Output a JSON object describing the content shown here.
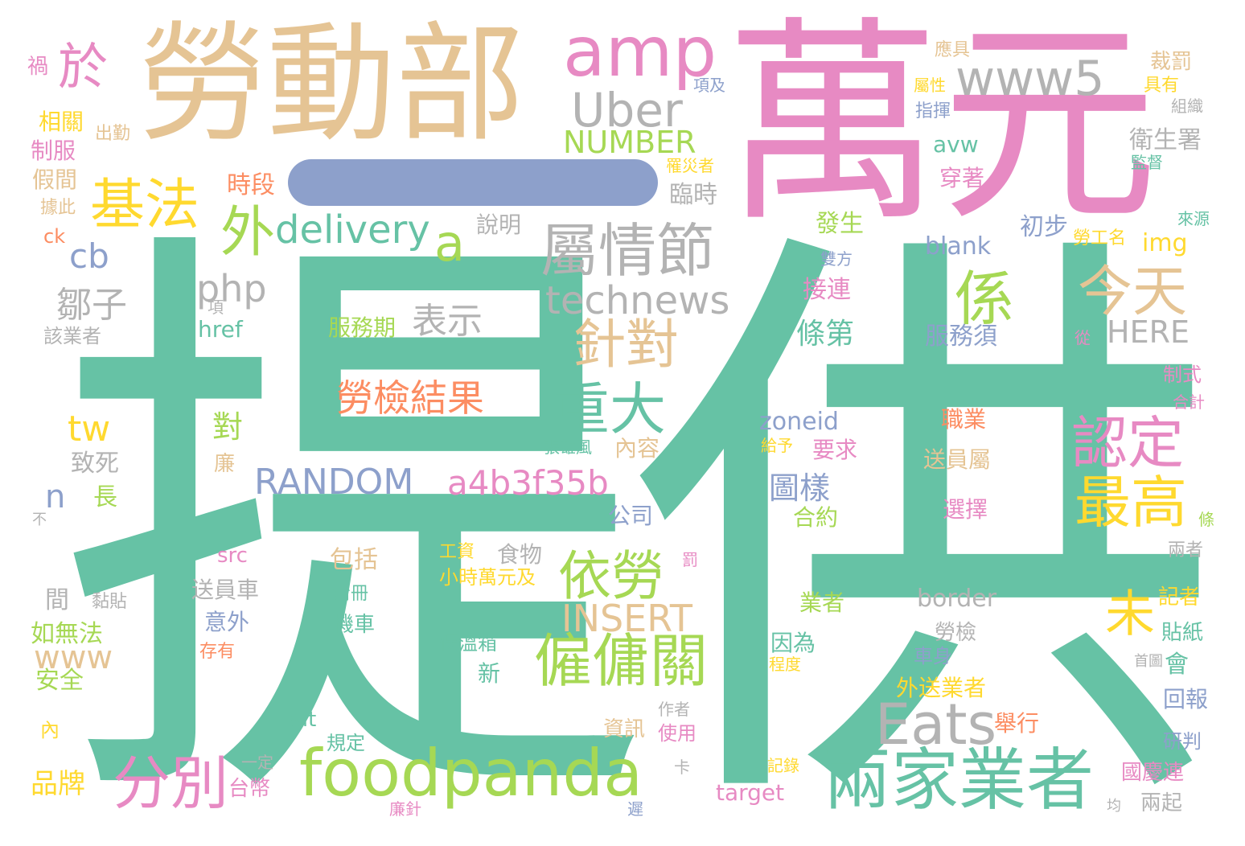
{
  "colors": {
    "green": "#66c2a5",
    "orange": "#fc8d62",
    "blue": "#8da0cb",
    "pink": "#e78ac3",
    "lime": "#a6d854",
    "yellow": "#ffd92f",
    "tan": "#e5c494",
    "gray": "#b3b3b3"
  },
  "words": [
    {
      "text": "提供",
      "color": "green"
    },
    {
      "text": "萬元",
      "color": "pink"
    },
    {
      "text": "勞動部",
      "color": "tan"
    },
    {
      "text": "一",
      "color": "blue"
    },
    {
      "text": "於",
      "color": "pink"
    },
    {
      "text": "amp",
      "color": "pink"
    },
    {
      "text": "www5",
      "color": "gray"
    },
    {
      "text": "Uber",
      "color": "gray"
    },
    {
      "text": "基法",
      "color": "yellow"
    },
    {
      "text": "NUMBER",
      "color": "lime"
    },
    {
      "text": "外",
      "color": "lime"
    },
    {
      "text": "delivery",
      "color": "green"
    },
    {
      "text": "a",
      "color": "lime"
    },
    {
      "text": "屬情節",
      "color": "gray"
    },
    {
      "text": "係",
      "color": "lime"
    },
    {
      "text": "今天",
      "color": "tan"
    },
    {
      "text": "cb",
      "color": "blue"
    },
    {
      "text": "php",
      "color": "gray"
    },
    {
      "text": "technews",
      "color": "gray"
    },
    {
      "text": "鄒子",
      "color": "gray"
    },
    {
      "text": "表示",
      "color": "gray"
    },
    {
      "text": "服務期",
      "color": "lime"
    },
    {
      "text": "針對",
      "color": "tan"
    },
    {
      "text": "勞檢結果",
      "color": "orange"
    },
    {
      "text": "重大",
      "color": "green"
    },
    {
      "text": "tw",
      "color": "yellow"
    },
    {
      "text": "RANDOM",
      "color": "blue"
    },
    {
      "text": "a4b3f35b",
      "color": "pink"
    },
    {
      "text": "認定",
      "color": "pink"
    },
    {
      "text": "最高",
      "color": "yellow"
    },
    {
      "text": "n",
      "color": "blue"
    },
    {
      "text": "依勞",
      "color": "lime"
    },
    {
      "text": "INSERT",
      "color": "tan"
    },
    {
      "text": "未",
      "color": "yellow"
    },
    {
      "text": "www",
      "color": "tan"
    },
    {
      "text": "僱傭關",
      "color": "lime"
    },
    {
      "text": "Eats",
      "color": "gray"
    },
    {
      "text": "分別",
      "color": "pink"
    },
    {
      "text": "foodpanda",
      "color": "lime"
    },
    {
      "text": "兩家業者",
      "color": "green"
    },
    {
      "text": "HERE",
      "color": "gray"
    },
    {
      "text": "條第",
      "color": "green"
    },
    {
      "text": "zoneid",
      "color": "blue"
    },
    {
      "text": "圖樣",
      "color": "blue"
    },
    {
      "text": "border",
      "color": "gray"
    },
    {
      "text": "衛生署",
      "color": "gray"
    },
    {
      "text": "時段",
      "color": "orange"
    },
    {
      "text": "臨時",
      "color": "gray"
    },
    {
      "text": "發生",
      "color": "lime"
    },
    {
      "text": "blank",
      "color": "blue"
    },
    {
      "text": "初步",
      "color": "blue"
    },
    {
      "text": "img",
      "color": "yellow"
    },
    {
      "text": "接連",
      "color": "pink"
    },
    {
      "text": "服務須",
      "color": "blue"
    },
    {
      "text": "avw",
      "color": "green"
    },
    {
      "text": "穿著",
      "color": "pink"
    },
    {
      "text": "href",
      "color": "green"
    },
    {
      "text": "說明",
      "color": "gray"
    },
    {
      "text": "對",
      "color": "lime"
    },
    {
      "text": "職業",
      "color": "orange"
    },
    {
      "text": "要求",
      "color": "pink"
    },
    {
      "text": "送員屬",
      "color": "tan"
    },
    {
      "text": "選擇",
      "color": "pink"
    },
    {
      "text": "公司",
      "color": "blue"
    },
    {
      "text": "合約",
      "color": "lime"
    },
    {
      "text": "內容",
      "color": "tan"
    },
    {
      "text": "致死",
      "color": "gray"
    },
    {
      "text": "長",
      "color": "lime"
    },
    {
      "text": "食物",
      "color": "gray"
    },
    {
      "text": "包括",
      "color": "tan"
    },
    {
      "text": "間",
      "color": "gray"
    },
    {
      "text": "src",
      "color": "pink"
    },
    {
      "text": "送員車",
      "color": "gray"
    },
    {
      "text": "意外",
      "color": "blue"
    },
    {
      "text": "小時萬元及",
      "color": "yellow"
    },
    {
      "text": "工資",
      "color": "yellow"
    },
    {
      "text": "清冊",
      "color": "green"
    },
    {
      "text": "機車",
      "color": "green"
    },
    {
      "text": "保溫箱",
      "color": "green"
    },
    {
      "text": "新",
      "color": "green"
    },
    {
      "text": "業者",
      "color": "lime"
    },
    {
      "text": "因為",
      "color": "green"
    },
    {
      "text": "勞檢",
      "color": "gray"
    },
    {
      "text": "車身",
      "color": "blue"
    },
    {
      "text": "外送業者",
      "color": "yellow"
    },
    {
      "text": "會",
      "color": "green"
    },
    {
      "text": "回報",
      "color": "blue"
    },
    {
      "text": "舉行",
      "color": "orange"
    },
    {
      "text": "研判",
      "color": "blue"
    },
    {
      "text": "國慶連",
      "color": "pink"
    },
    {
      "text": "兩起",
      "color": "gray"
    },
    {
      "text": "資訊",
      "color": "tan"
    },
    {
      "text": "使用",
      "color": "pink"
    },
    {
      "text": "alt",
      "color": "green"
    },
    {
      "text": "規定",
      "color": "green"
    },
    {
      "text": "台幣",
      "color": "pink"
    },
    {
      "text": "target",
      "color": "pink"
    },
    {
      "text": "品牌",
      "color": "yellow"
    },
    {
      "text": "如無法",
      "color": "lime"
    },
    {
      "text": "安全",
      "color": "lime"
    },
    {
      "text": "存有",
      "color": "orange"
    },
    {
      "text": "禍",
      "color": "pink"
    },
    {
      "text": "相關",
      "color": "yellow"
    },
    {
      "text": "制服",
      "color": "pink"
    },
    {
      "text": "假間",
      "color": "tan"
    },
    {
      "text": "出勤",
      "color": "tan"
    },
    {
      "text": "據此",
      "color": "tan"
    },
    {
      "text": "ck",
      "color": "orange"
    },
    {
      "text": "該業者",
      "color": "gray"
    },
    {
      "text": "項",
      "color": "gray"
    },
    {
      "text": "不",
      "color": "gray"
    },
    {
      "text": "黏貼",
      "color": "gray"
    },
    {
      "text": "內",
      "color": "yellow"
    },
    {
      "text": "一定",
      "color": "gray"
    },
    {
      "text": "作者",
      "color": "gray"
    },
    {
      "text": "廉針",
      "color": "pink"
    },
    {
      "text": "卡",
      "color": "gray"
    },
    {
      "text": "遲",
      "color": "blue"
    },
    {
      "text": "張雄風",
      "color": "green"
    },
    {
      "text": "給予",
      "color": "yellow"
    },
    {
      "text": "記錄",
      "color": "yellow"
    },
    {
      "text": "均",
      "color": "gray"
    },
    {
      "text": "廉",
      "color": "tan"
    },
    {
      "text": "罰",
      "color": "pink"
    },
    {
      "text": "程度",
      "color": "yellow"
    },
    {
      "text": "罹災者",
      "color": "yellow"
    },
    {
      "text": "雙方",
      "color": "blue"
    },
    {
      "text": "項及",
      "color": "blue"
    },
    {
      "text": "指揮",
      "color": "blue"
    },
    {
      "text": "屬性",
      "color": "yellow"
    },
    {
      "text": "應具",
      "color": "tan"
    },
    {
      "text": "裁罰",
      "color": "tan"
    },
    {
      "text": "具有",
      "color": "yellow"
    },
    {
      "text": "組織",
      "color": "gray"
    },
    {
      "text": "監督",
      "color": "green"
    },
    {
      "text": "來源",
      "color": "green"
    },
    {
      "text": "勞工名",
      "color": "yellow"
    },
    {
      "text": "從",
      "color": "pink"
    },
    {
      "text": "制式",
      "color": "pink"
    },
    {
      "text": "合計",
      "color": "pink"
    },
    {
      "text": "記者",
      "color": "yellow"
    },
    {
      "text": "貼紙",
      "color": "green"
    },
    {
      "text": "兩者",
      "color": "gray"
    },
    {
      "text": "條",
      "color": "lime"
    },
    {
      "text": "首圖",
      "color": "gray"
    }
  ]
}
